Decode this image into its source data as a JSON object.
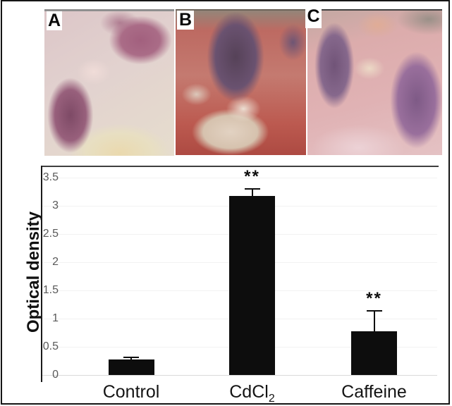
{
  "figure": {
    "panels": [
      {
        "label": "A"
      },
      {
        "label": "B"
      },
      {
        "label": "C"
      }
    ]
  },
  "chart_data": {
    "type": "bar",
    "title": "",
    "xlabel": "",
    "ylabel": "Optical density",
    "categories": [
      "Control",
      "CdCl2",
      "Caffeine"
    ],
    "category_labels": [
      {
        "base": "Control",
        "sub": ""
      },
      {
        "base": "CdCl",
        "sub": "2"
      },
      {
        "base": "Caffeine",
        "sub": ""
      }
    ],
    "values": [
      0.27,
      3.17,
      0.78
    ],
    "errors_plus": [
      0.04,
      0.13,
      0.36
    ],
    "significance": [
      "",
      "**",
      "**"
    ],
    "ylim": [
      0,
      3.5
    ],
    "ytick_step": 0.5,
    "ytick_labels": [
      "0",
      "0.5",
      "1",
      "1.5",
      "2",
      "2.5",
      "3",
      "3.5"
    ],
    "bar_color": "#0d0d0d",
    "grid": true,
    "legend_position": "none"
  }
}
